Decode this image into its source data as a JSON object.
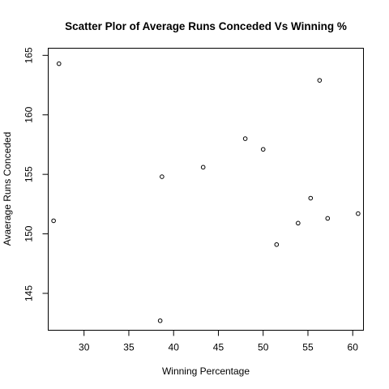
{
  "chart_data": {
    "type": "scatter",
    "title": "Scatter Plor of Average Runs Conceded Vs Winning %",
    "xlabel": "Winning Percentage",
    "ylabel": "Avaerage Runs Conceded",
    "xlim": [
      26.0,
      61.2
    ],
    "ylim": [
      141.9,
      165.6
    ],
    "xticks": [
      30,
      35,
      40,
      45,
      50,
      55,
      60
    ],
    "yticks": [
      145,
      150,
      155,
      160,
      165
    ],
    "grid": false,
    "legend": "none",
    "points": [
      {
        "x": 27.2,
        "y": 164.3
      },
      {
        "x": 26.6,
        "y": 151.1
      },
      {
        "x": 38.7,
        "y": 154.8
      },
      {
        "x": 38.5,
        "y": 142.7
      },
      {
        "x": 43.3,
        "y": 155.6
      },
      {
        "x": 48.0,
        "y": 158.0
      },
      {
        "x": 50.0,
        "y": 157.1
      },
      {
        "x": 51.5,
        "y": 149.1
      },
      {
        "x": 53.9,
        "y": 150.9
      },
      {
        "x": 55.3,
        "y": 153.0
      },
      {
        "x": 56.3,
        "y": 162.9
      },
      {
        "x": 57.2,
        "y": 151.3
      },
      {
        "x": 60.6,
        "y": 151.7
      }
    ]
  }
}
